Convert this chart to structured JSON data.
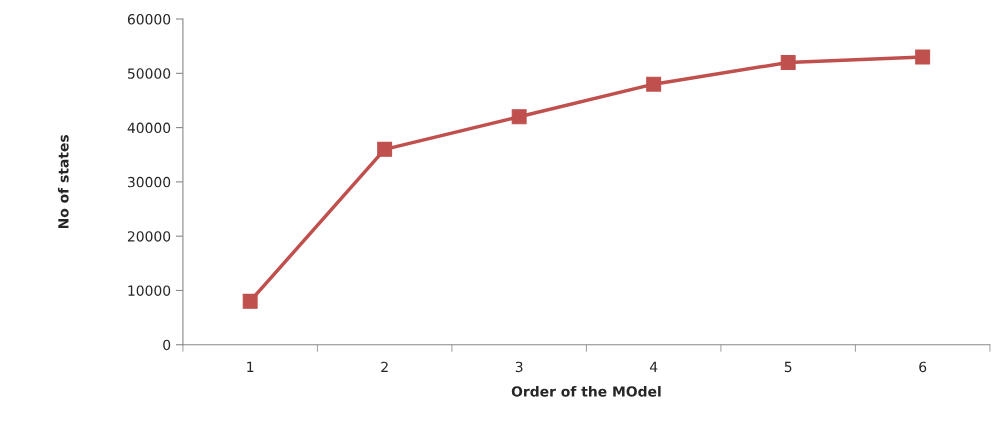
{
  "chart_data": {
    "type": "line",
    "xlabel": "Order of the MOdel",
    "ylabel": "No of states",
    "categories": [
      "1",
      "2",
      "3",
      "4",
      "5",
      "6"
    ],
    "series": [
      {
        "color": "#c0504d",
        "values": [
          8000,
          36000,
          42000,
          48000,
          52000,
          53000
        ]
      }
    ],
    "ylim": [
      0,
      60000
    ],
    "yticks": [
      0,
      10000,
      20000,
      30000,
      40000,
      50000,
      60000
    ],
    "marker": "square",
    "line_style": "solid",
    "grid": false,
    "legend": false
  }
}
